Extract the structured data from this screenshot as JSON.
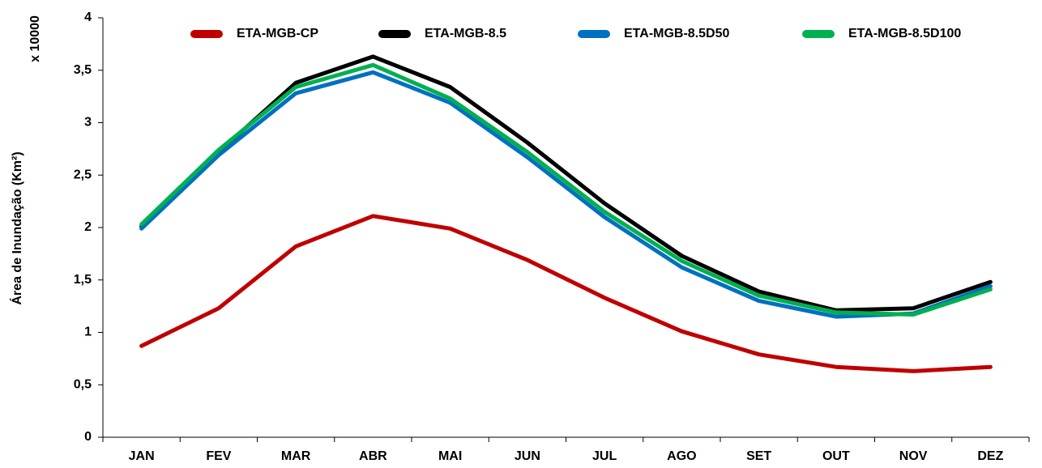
{
  "chart_data": {
    "type": "line",
    "y_label": "Área de Inundação (Km²)",
    "y_multiplier": "x 10000",
    "categories": [
      "JAN",
      "FEV",
      "MAR",
      "ABR",
      "MAI",
      "JUN",
      "JUL",
      "AGO",
      "SET",
      "OUT",
      "NOV",
      "DEZ"
    ],
    "series": [
      {
        "name": "ETA-MGB-CP",
        "color": "#c00000",
        "values": [
          0.87,
          1.23,
          1.82,
          2.11,
          1.99,
          1.69,
          1.33,
          1.01,
          0.79,
          0.67,
          0.63,
          0.67
        ]
      },
      {
        "name": "ETA-MGB-8.5",
        "color": "#000000",
        "values": [
          2.01,
          2.72,
          3.38,
          3.63,
          3.34,
          2.81,
          2.23,
          1.73,
          1.39,
          1.21,
          1.23,
          1.48
        ]
      },
      {
        "name": "ETA-MGB-8.5D50",
        "color": "#0070c0",
        "values": [
          1.99,
          2.69,
          3.28,
          3.48,
          3.19,
          2.67,
          2.1,
          1.62,
          1.3,
          1.15,
          1.18,
          1.44
        ]
      },
      {
        "name": "ETA-MGB-8.5D100",
        "color": "#00b050",
        "values": [
          2.03,
          2.74,
          3.34,
          3.55,
          3.23,
          2.72,
          2.15,
          1.68,
          1.35,
          1.19,
          1.17,
          1.41
        ]
      }
    ],
    "ylim": [
      0,
      4
    ],
    "yticks": [
      0,
      {
        "value": 0.5,
        "label": "0,5"
      },
      1,
      {
        "value": 1.5,
        "label": "1,5"
      },
      2,
      {
        "value": 2.5,
        "label": "2,5"
      },
      3,
      {
        "value": 3.5,
        "label": "3,5"
      },
      4
    ],
    "grid": false,
    "legend": "top"
  }
}
